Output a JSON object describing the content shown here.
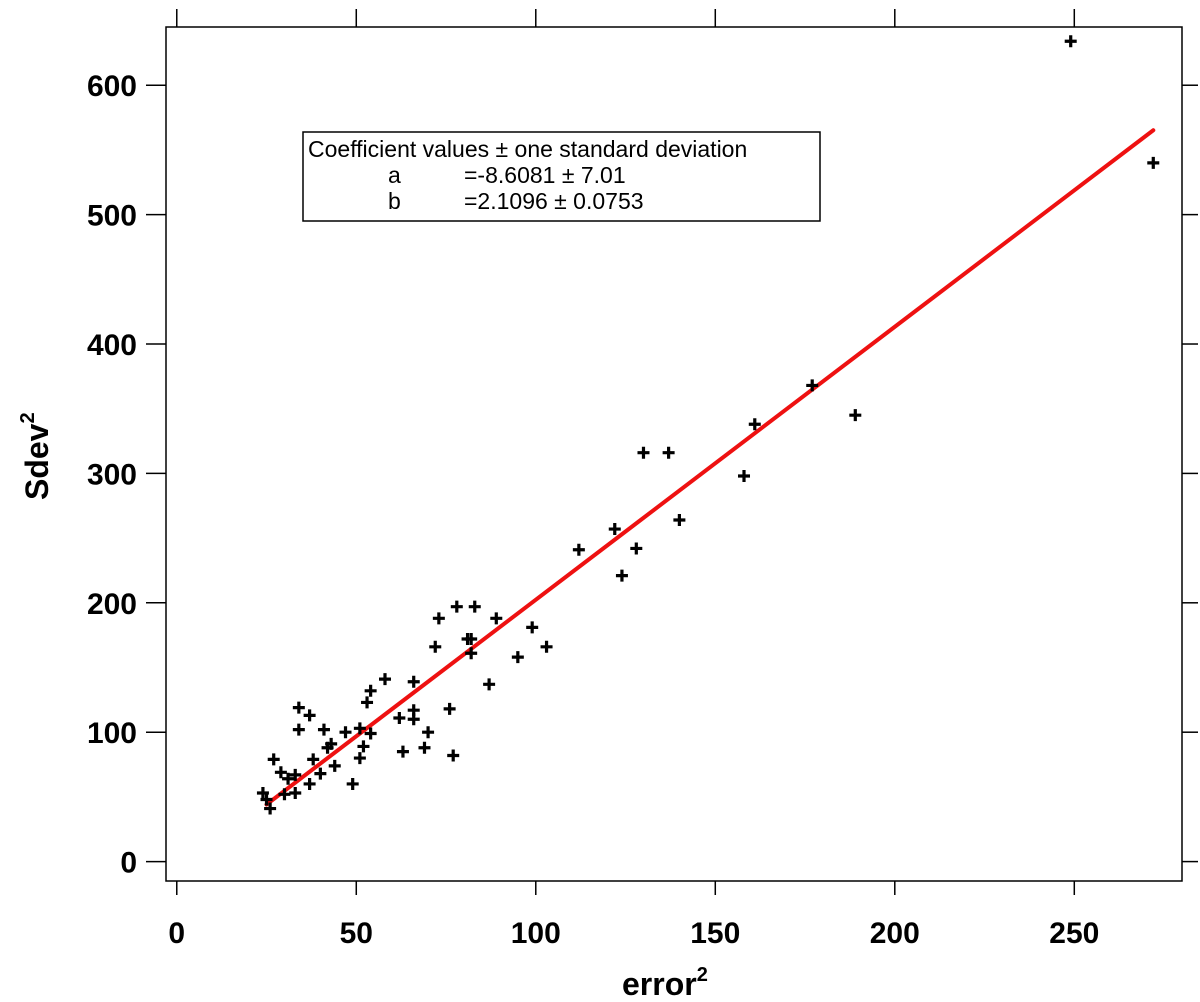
{
  "chart_data": {
    "type": "scatter",
    "xlabel": "error",
    "xlabel_sup": "2",
    "ylabel": "Sdev",
    "ylabel_sup": "2",
    "xlim": [
      -3,
      280
    ],
    "ylim": [
      -15,
      645
    ],
    "xticks": [
      0,
      50,
      100,
      150,
      200,
      250
    ],
    "yticks": [
      0,
      100,
      200,
      300,
      400,
      500,
      600
    ],
    "x_tick_labels": [
      "0",
      "50",
      "100",
      "150",
      "200",
      "250"
    ],
    "y_tick_labels": [
      "0",
      "100",
      "200",
      "300",
      "400",
      "500",
      "600"
    ],
    "grid": false,
    "fit_line": {
      "a": -8.6081,
      "b": 2.1096,
      "x_range": [
        25,
        272
      ],
      "color": "#ee1111"
    },
    "legend": {
      "title": "Coefficient values ± one standard deviation",
      "rows": [
        {
          "name": "a",
          "value": "=-8.6081 ± 7.01"
        },
        {
          "name": "b",
          "value": "=2.1096 ± 0.0753"
        }
      ]
    },
    "series": [
      {
        "marker": "plus",
        "color": "#000000",
        "points": [
          [
            24,
            53
          ],
          [
            25,
            48
          ],
          [
            26,
            41
          ],
          [
            27,
            79
          ],
          [
            29,
            69
          ],
          [
            30,
            52
          ],
          [
            31,
            64
          ],
          [
            33,
            53
          ],
          [
            33,
            67
          ],
          [
            34,
            119
          ],
          [
            34,
            102
          ],
          [
            37,
            113
          ],
          [
            37,
            60
          ],
          [
            38,
            79
          ],
          [
            40,
            68
          ],
          [
            41,
            102
          ],
          [
            42,
            88
          ],
          [
            43,
            91
          ],
          [
            44,
            74
          ],
          [
            47,
            100
          ],
          [
            49,
            60
          ],
          [
            51,
            80
          ],
          [
            51,
            103
          ],
          [
            52,
            89
          ],
          [
            53,
            123
          ],
          [
            54,
            99
          ],
          [
            54,
            132
          ],
          [
            58,
            141
          ],
          [
            62,
            111
          ],
          [
            63,
            85
          ],
          [
            66,
            117
          ],
          [
            66,
            110
          ],
          [
            66,
            139
          ],
          [
            69,
            88
          ],
          [
            70,
            100
          ],
          [
            72,
            166
          ],
          [
            73,
            188
          ],
          [
            76,
            118
          ],
          [
            77,
            82
          ],
          [
            78,
            197
          ],
          [
            81,
            172
          ],
          [
            82,
            161
          ],
          [
            82,
            172
          ],
          [
            83,
            197
          ],
          [
            87,
            137
          ],
          [
            89,
            188
          ],
          [
            95,
            158
          ],
          [
            99,
            181
          ],
          [
            103,
            166
          ],
          [
            112,
            241
          ],
          [
            122,
            257
          ],
          [
            124,
            221
          ],
          [
            128,
            242
          ],
          [
            130,
            316
          ],
          [
            137,
            316
          ],
          [
            140,
            264
          ],
          [
            158,
            298
          ],
          [
            161,
            338
          ],
          [
            177,
            368
          ],
          [
            189,
            345
          ],
          [
            249,
            634
          ],
          [
            272,
            540
          ]
        ]
      }
    ]
  }
}
